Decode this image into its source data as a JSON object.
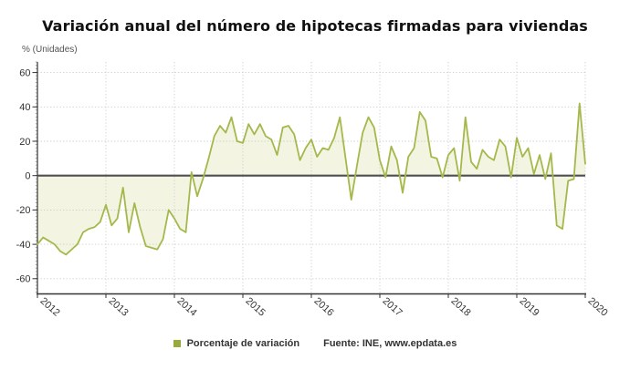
{
  "header": {
    "title": "Variación anual del número de hipotecas firmadas para viviendas"
  },
  "chart": {
    "unit_label": "% (Unidades)"
  },
  "legend": {
    "series_label": "Porcentaje de variación"
  },
  "footer": {
    "source_label": "Fuente: INE, www.epdata.es"
  },
  "colors": {
    "series_line": "#a4b84b",
    "series_fill": "#f3f5e2",
    "legend_swatch": "#97ab3d",
    "zero_line": "#4f4f4f",
    "grid": "#cccccc",
    "axis": "#333333",
    "text": "#333333",
    "title_text": "#111111",
    "muted_text": "#555555"
  },
  "chart_data": {
    "type": "area",
    "title": "Variación anual del número de hipotecas firmadas para viviendas",
    "ylabel": "% (Unidades)",
    "xlabel": "",
    "frequency": "monthly",
    "x_start": "2012-01",
    "x_end": "2020-01",
    "x_tick_labels": [
      "2012",
      "2013",
      "2014",
      "2015",
      "2016",
      "2017",
      "2018",
      "2019",
      "2020"
    ],
    "y_ticks": [
      60,
      40,
      20,
      0,
      -20,
      -40,
      -60
    ],
    "ylim": [
      -68,
      66
    ],
    "baseline": 0,
    "grid": true,
    "legend_position": "bottom",
    "series": [
      {
        "name": "Porcentaje de variación",
        "values": [
          -40,
          -36,
          -38,
          -40,
          -44,
          -46,
          -43,
          -40,
          -33,
          -31,
          -30,
          -27,
          -17,
          -29,
          -25,
          -7,
          -33,
          -16,
          -30,
          -41,
          -42,
          -43,
          -37,
          -20,
          -25,
          -31,
          -33,
          2,
          -12,
          -2,
          10,
          23,
          29,
          25,
          34,
          20,
          19,
          30,
          24,
          30,
          23,
          21,
          12,
          28,
          29,
          24,
          9,
          16,
          21,
          11,
          16,
          15,
          22,
          34,
          10,
          -14,
          6,
          25,
          34,
          28,
          9,
          -1,
          17,
          9,
          -10,
          11,
          16,
          37,
          32,
          11,
          10,
          -1,
          12,
          16,
          -3,
          34,
          8,
          4,
          15,
          11,
          9,
          21,
          17,
          -1,
          22,
          11,
          16,
          1,
          12,
          -2,
          13,
          -29,
          -31,
          -3,
          -2,
          42,
          7
        ]
      }
    ]
  }
}
